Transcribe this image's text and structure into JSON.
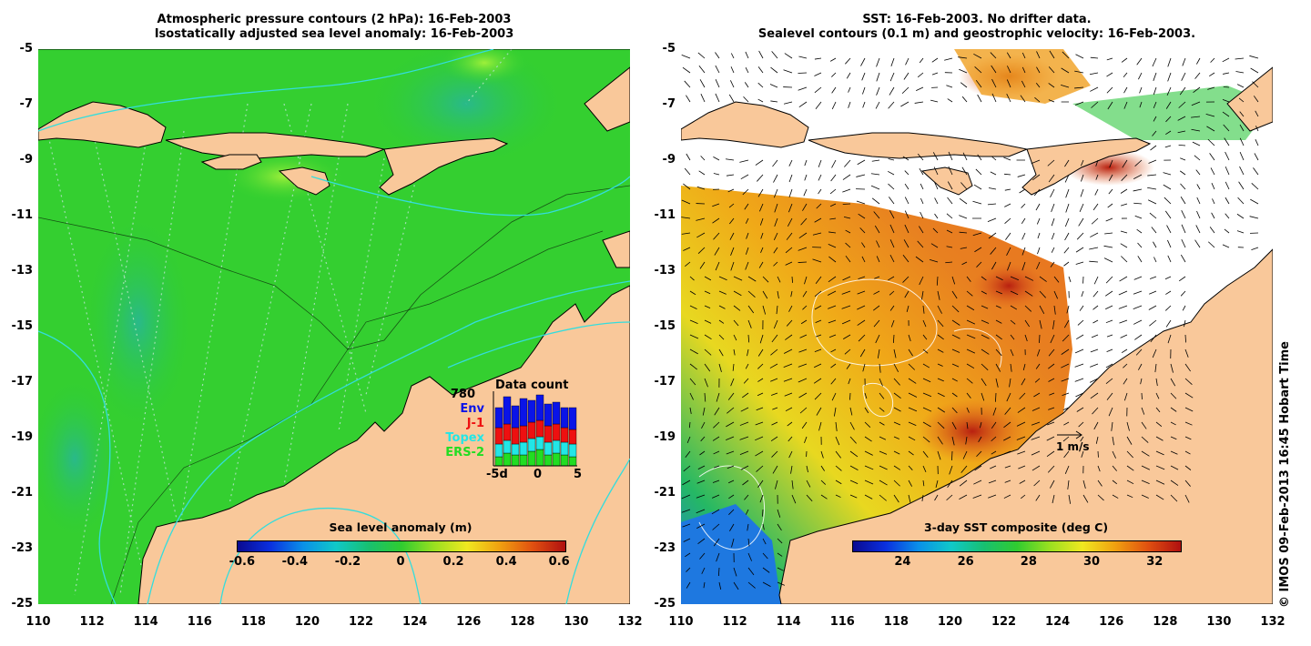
{
  "left": {
    "title_line1": "Atmospheric pressure contours (2 hPa): 16-Feb-2003",
    "title_line2": "Isostatically adjusted sea level anomaly: 16-Feb-2003",
    "colorbar": {
      "label": "Sea level anomaly (m)",
      "ticks": [
        "-0.6",
        "-0.4",
        "-0.2",
        "0",
        "0.2",
        "0.4",
        "0.6"
      ]
    },
    "data_count": {
      "title": "Data count",
      "max": "780",
      "series": [
        {
          "name": "Env",
          "color": "#0a14e8"
        },
        {
          "name": "J-1",
          "color": "#ee1010"
        },
        {
          "name": "Topex",
          "color": "#22e6e6"
        },
        {
          "name": "ERS-2",
          "color": "#22dd22"
        }
      ],
      "x_ticks": [
        "-5d",
        "0",
        "5"
      ]
    }
  },
  "right": {
    "title_line1": "SST: 16-Feb-2003. No drifter data.",
    "title_line2": "Sealevel contours (0.1 m) and geostrophic velocity: 16-Feb-2003.",
    "colorbar": {
      "label": "3-day SST composite (deg C)",
      "ticks": [
        "24",
        "26",
        "28",
        "30",
        "32"
      ]
    },
    "velocity_scale": "1 m/s"
  },
  "axes": {
    "y_ticks": [
      "-5",
      "-7",
      "-9",
      "-11",
      "-13",
      "-15",
      "-17",
      "-19",
      "-21",
      "-23",
      "-25"
    ],
    "x_ticks": [
      "110",
      "112",
      "114",
      "116",
      "118",
      "120",
      "122",
      "124",
      "126",
      "128",
      "130",
      "132"
    ]
  },
  "credit": "© IMOS 09-Feb-2013 16:45 Hobart Time",
  "colors": {
    "land": "#f9c89a",
    "ocean_left": "#2fcf2f",
    "coast": "#000000",
    "pressure_contour": "#33dddd"
  }
}
